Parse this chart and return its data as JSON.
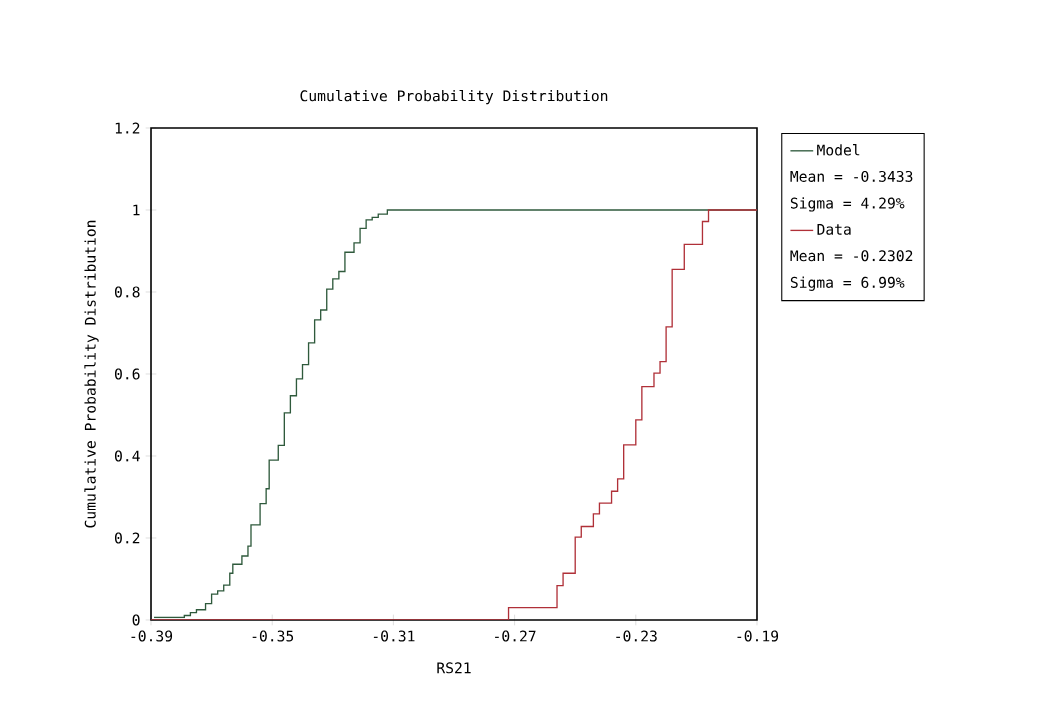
{
  "chart_data": {
    "type": "step",
    "title": "Cumulative Probability Distribution",
    "xlabel": "RS21",
    "ylabel": "Cumulative Probability Distribution",
    "xlim": [
      -0.39,
      -0.19
    ],
    "xticks": [
      -0.39,
      -0.35,
      -0.31,
      -0.27,
      -0.23,
      -0.19
    ],
    "ylim": [
      0,
      1.2
    ],
    "yticks": [
      0,
      0.2,
      0.4,
      0.6,
      0.8,
      1,
      1.2
    ],
    "legend": "right",
    "annotations": [
      "Mean = -0.3433",
      "Sigma = 4.29%",
      "Mean = -0.2302",
      "Sigma = 6.99%"
    ],
    "series": [
      {
        "name": "Model",
        "color": "#2f5a3c",
        "x": [
          -0.389,
          -0.379,
          -0.377,
          -0.375,
          -0.372,
          -0.37,
          -0.368,
          -0.366,
          -0.364,
          -0.363,
          -0.36,
          -0.358,
          -0.357,
          -0.354,
          -0.352,
          -0.351,
          -0.348,
          -0.346,
          -0.344,
          -0.342,
          -0.34,
          -0.338,
          -0.336,
          -0.334,
          -0.332,
          -0.33,
          -0.328,
          -0.326,
          -0.323,
          -0.321,
          -0.319,
          -0.317,
          -0.315,
          -0.312,
          -0.19
        ],
        "values": [
          0.006,
          0.011,
          0.018,
          0.025,
          0.04,
          0.063,
          0.071,
          0.085,
          0.114,
          0.136,
          0.156,
          0.18,
          0.232,
          0.284,
          0.32,
          0.39,
          0.426,
          0.505,
          0.547,
          0.588,
          0.623,
          0.676,
          0.732,
          0.756,
          0.807,
          0.832,
          0.85,
          0.897,
          0.92,
          0.955,
          0.976,
          0.982,
          0.99,
          1,
          1
        ]
      },
      {
        "name": "Data",
        "color": "#b03038",
        "x": [
          -0.39,
          -0.272,
          -0.256,
          -0.254,
          -0.25,
          -0.248,
          -0.244,
          -0.242,
          -0.238,
          -0.236,
          -0.234,
          -0.23,
          -0.228,
          -0.224,
          -0.222,
          -0.22,
          -0.218,
          -0.214,
          -0.208,
          -0.206,
          -0.19
        ],
        "values": [
          0,
          0.03,
          0.084,
          0.114,
          0.202,
          0.228,
          0.259,
          0.285,
          0.314,
          0.344,
          0.427,
          0.488,
          0.569,
          0.602,
          0.63,
          0.715,
          0.855,
          0.916,
          0.972,
          1,
          1
        ]
      }
    ]
  }
}
